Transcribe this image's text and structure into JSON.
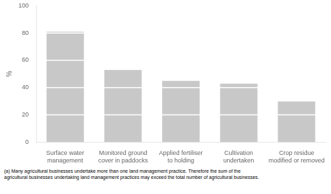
{
  "chart_data": {
    "type": "bar",
    "categories": [
      "Surface water\nmanagement",
      "Monitored ground\ncover in paddocks",
      "Applied fertiliser\nto holding",
      "Cultivation\nundertaken",
      "Crop residue\nmodified or removed"
    ],
    "values": [
      81,
      53,
      45,
      43,
      30
    ],
    "color": "#c8c8c8",
    "ylabel": "%",
    "ylim": [
      0,
      100
    ],
    "yticks": [
      0,
      20,
      40,
      60,
      80,
      100
    ],
    "grid": false,
    "footnote": "(a) Many agricultural businesses undertake more than one land management practice. Therefore the sum of the\nagricultural businesses undertaking land management practices may exceed the total number of agricultural businesses."
  }
}
